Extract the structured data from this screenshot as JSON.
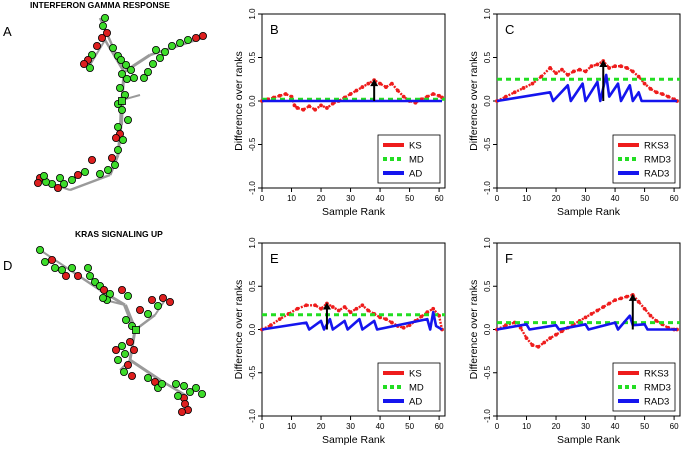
{
  "figure": {
    "network_titles": [
      "INTERFERON GAMMA RESPONSE",
      "KRAS SIGNALING UP"
    ],
    "network_labels": [
      "A",
      "D"
    ]
  },
  "colors": {
    "red": "#ee1c1c",
    "green": "#22dd22",
    "blue": "#1515ee",
    "black": "#000000",
    "node_red": "#dd1f1f",
    "node_green": "#3ddc2a",
    "edge": "#9a9a9a"
  },
  "chart_data": [
    {
      "panel": "B",
      "type": "line",
      "xlabel": "Sample Rank",
      "ylabel": "Difference over ranks",
      "xlim": [
        0,
        62
      ],
      "ylim": [
        -1,
        1
      ],
      "xticks": [
        0,
        10,
        20,
        30,
        40,
        50,
        60
      ],
      "yticks": [
        -1.0,
        -0.5,
        0.0,
        0.5,
        1.0
      ],
      "legend": [
        "KS",
        "MD",
        "AD"
      ],
      "legend_position": "bottom-right",
      "series": [
        {
          "name": "KS",
          "kind": "dots",
          "color": "red",
          "x": [
            0,
            2,
            4,
            6,
            8,
            10,
            11,
            12,
            14,
            16,
            18,
            20,
            22,
            24,
            26,
            28,
            30,
            32,
            34,
            36,
            38,
            40,
            42,
            44,
            46,
            48,
            50,
            52,
            54,
            56,
            58,
            60,
            61
          ],
          "y": [
            0,
            0.02,
            0.04,
            0.06,
            0.08,
            0.05,
            -0.05,
            -0.08,
            -0.1,
            -0.06,
            -0.1,
            -0.05,
            -0.08,
            -0.03,
            0,
            0.04,
            0.08,
            0.12,
            0.16,
            0.2,
            0.24,
            0.2,
            0.16,
            0.2,
            0.12,
            0.05,
            0,
            -0.02,
            0.02,
            0.05,
            0.08,
            0.06,
            0.04
          ]
        },
        {
          "name": "MD",
          "kind": "hline",
          "color": "green",
          "y": 0.02
        },
        {
          "name": "AD",
          "kind": "line",
          "color": "blue",
          "x": [
            0,
            61
          ],
          "y": [
            0,
            0
          ]
        }
      ],
      "annotation": {
        "x": 38,
        "y0": 0,
        "y1": 0.24
      }
    },
    {
      "panel": "C",
      "type": "line",
      "xlabel": "Sample Rank",
      "ylabel": "Difference over ranks",
      "xlim": [
        0,
        62
      ],
      "ylim": [
        -1,
        1
      ],
      "xticks": [
        0,
        10,
        20,
        30,
        40,
        50,
        60
      ],
      "yticks": [
        -1.0,
        -0.5,
        0.0,
        0.5,
        1.0
      ],
      "legend": [
        "RKS3",
        "RMD3",
        "RAD3"
      ],
      "legend_position": "bottom-right",
      "series": [
        {
          "name": "RKS3",
          "kind": "dots",
          "color": "red",
          "x": [
            0,
            3,
            6,
            9,
            12,
            15,
            18,
            20,
            22,
            24,
            26,
            28,
            30,
            32,
            34,
            36,
            38,
            40,
            42,
            44,
            46,
            48,
            50,
            52,
            54,
            56,
            58,
            60,
            61
          ],
          "y": [
            0,
            0.05,
            0.1,
            0.15,
            0.2,
            0.28,
            0.38,
            0.32,
            0.36,
            0.3,
            0.34,
            0.36,
            0.34,
            0.4,
            0.42,
            0.46,
            0.38,
            0.4,
            0.4,
            0.38,
            0.34,
            0.28,
            0.2,
            0.14,
            0.1,
            0.08,
            0.05,
            0.02,
            0
          ]
        },
        {
          "name": "RMD3",
          "kind": "hline",
          "color": "green",
          "y": 0.25
        },
        {
          "name": "RAD3",
          "kind": "line",
          "color": "blue",
          "x": [
            0,
            18,
            19,
            24,
            25,
            29,
            30,
            34,
            35,
            37,
            38,
            41,
            42,
            45,
            46,
            48,
            49,
            61
          ],
          "y": [
            0,
            0.1,
            0,
            0.18,
            0,
            0.2,
            0,
            0.22,
            0,
            0.3,
            0.05,
            0.2,
            0,
            0.18,
            0,
            0.1,
            0,
            0
          ]
        }
      ],
      "annotation": {
        "x": 36,
        "y0": 0,
        "y1": 0.46
      }
    },
    {
      "panel": "E",
      "type": "line",
      "xlabel": "Sample Rank",
      "ylabel": "Difference over ranks",
      "xlim": [
        0,
        62
      ],
      "ylim": [
        -1,
        1
      ],
      "xticks": [
        0,
        10,
        20,
        30,
        40,
        50,
        60
      ],
      "yticks": [
        -1.0,
        -0.5,
        0.0,
        0.5,
        1.0
      ],
      "legend": [
        "KS",
        "MD",
        "AD"
      ],
      "legend_position": "bottom-right",
      "series": [
        {
          "name": "KS",
          "kind": "dots",
          "color": "red",
          "x": [
            0,
            3,
            6,
            9,
            12,
            15,
            18,
            20,
            22,
            24,
            26,
            28,
            30,
            32,
            34,
            36,
            38,
            40,
            42,
            44,
            46,
            48,
            50,
            52,
            54,
            56,
            58,
            60,
            61
          ],
          "y": [
            0,
            0.05,
            0.12,
            0.18,
            0.24,
            0.28,
            0.28,
            0.24,
            0.3,
            0.26,
            0.22,
            0.26,
            0.2,
            0.24,
            0.28,
            0.22,
            0.18,
            0.14,
            0.12,
            0.08,
            0.04,
            0.02,
            0.05,
            0.1,
            0.15,
            0.2,
            0.24,
            0.16,
            0
          ]
        },
        {
          "name": "MD",
          "kind": "hline",
          "color": "green",
          "y": 0.17
        },
        {
          "name": "AD",
          "kind": "line",
          "color": "blue",
          "x": [
            0,
            15,
            16,
            20,
            21,
            23,
            24,
            28,
            29,
            33,
            34,
            38,
            39,
            56,
            57,
            58,
            59,
            61
          ],
          "y": [
            0,
            0.08,
            0,
            0.1,
            0,
            0.12,
            0,
            0.1,
            0,
            0.12,
            0,
            0.1,
            0,
            0.12,
            0,
            0.2,
            0.04,
            0
          ]
        }
      ],
      "annotation": {
        "x": 22,
        "y0": 0,
        "y1": 0.3
      }
    },
    {
      "panel": "F",
      "type": "line",
      "xlabel": "Sample Rank",
      "ylabel": "Difference over ranks",
      "xlim": [
        0,
        62
      ],
      "ylim": [
        -1,
        1
      ],
      "xticks": [
        0,
        10,
        20,
        30,
        40,
        50,
        60
      ],
      "yticks": [
        -1.0,
        -0.5,
        0.0,
        0.5,
        1.0
      ],
      "legend": [
        "RKS3",
        "RMD3",
        "RAD3"
      ],
      "legend_position": "bottom-right",
      "series": [
        {
          "name": "RKS3",
          "kind": "dots",
          "color": "red",
          "x": [
            0,
            3,
            6,
            8,
            10,
            12,
            14,
            16,
            18,
            20,
            22,
            24,
            26,
            28,
            30,
            32,
            34,
            36,
            38,
            40,
            42,
            44,
            46,
            48,
            50,
            52,
            54,
            56,
            58,
            60,
            61
          ],
          "y": [
            0,
            0.05,
            0.08,
            0.02,
            -0.1,
            -0.18,
            -0.2,
            -0.15,
            -0.1,
            -0.06,
            -0.02,
            0.02,
            0.06,
            0.1,
            0.14,
            0.18,
            0.22,
            0.26,
            0.3,
            0.34,
            0.36,
            0.38,
            0.4,
            0.32,
            0.24,
            0.16,
            0.1,
            0.06,
            0.02,
            0,
            0
          ]
        },
        {
          "name": "RMD3",
          "kind": "hline",
          "color": "green",
          "y": 0.08
        },
        {
          "name": "RAD3",
          "kind": "line",
          "color": "blue",
          "x": [
            0,
            10,
            11,
            20,
            21,
            30,
            31,
            40,
            41,
            45,
            46,
            50,
            51,
            61
          ],
          "y": [
            0,
            0.06,
            0,
            0.05,
            0,
            0.06,
            0,
            0.08,
            0,
            0.16,
            0.05,
            0.06,
            0,
            0
          ]
        }
      ],
      "annotation": {
        "x": 46,
        "y0": 0,
        "y1": 0.4
      }
    }
  ]
}
